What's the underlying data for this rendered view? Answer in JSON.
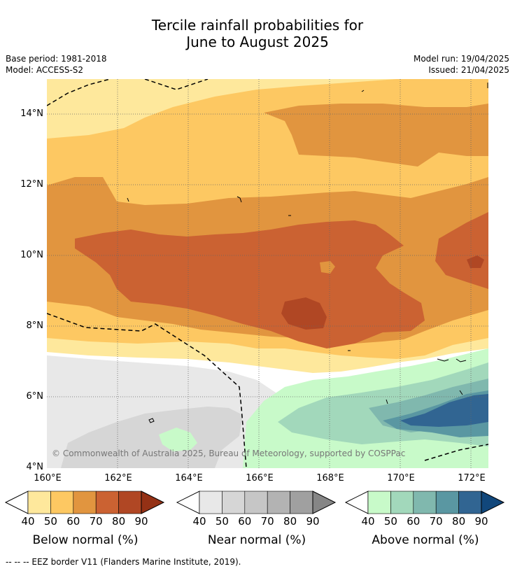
{
  "title_line1": "Tercile rainfall probabilities for",
  "title_line2": "June to August 2025",
  "base_period": "Base period: 1981-2018",
  "model": "Model: ACCESS-S2",
  "model_run": "Model run: 19/04/2025",
  "issued": "Issued: 21/04/2025",
  "lat_ticks": [
    "14°N",
    "12°N",
    "10°N",
    "8°N",
    "6°N",
    "4°N"
  ],
  "lon_ticks": [
    "160°E",
    "162°E",
    "164°E",
    "166°E",
    "168°E",
    "170°E",
    "172°E"
  ],
  "copyright": "© Commonwealth of Australia 2025, Bureau of Meteorology, supported by COSPPac",
  "legends": {
    "below": {
      "label": "Below normal (%)",
      "ticks": [
        "40",
        "50",
        "60",
        "70",
        "80",
        "90"
      ],
      "colors": [
        "#fee89c",
        "#fdc862",
        "#e1953f",
        "#cb6232",
        "#b04724",
        "#943115"
      ]
    },
    "near": {
      "label": "Near normal (%)",
      "ticks": [
        "40",
        "50",
        "60",
        "70",
        "80",
        "90"
      ],
      "colors": [
        "#e8e8e8",
        "#d6d6d6",
        "#c6c6c6",
        "#b3b3b3",
        "#a0a0a0",
        "#868686"
      ]
    },
    "above": {
      "label": "Above normal (%)",
      "ticks": [
        "40",
        "50",
        "60",
        "70",
        "80",
        "90"
      ],
      "colors": [
        "#c8fac9",
        "#a2d8bb",
        "#80b8ae",
        "#5a97a2",
        "#316592",
        "#11477b"
      ]
    }
  },
  "footer": "--  --  -- EEZ border V11 (Flanders Marine Institute, 2019)."
}
